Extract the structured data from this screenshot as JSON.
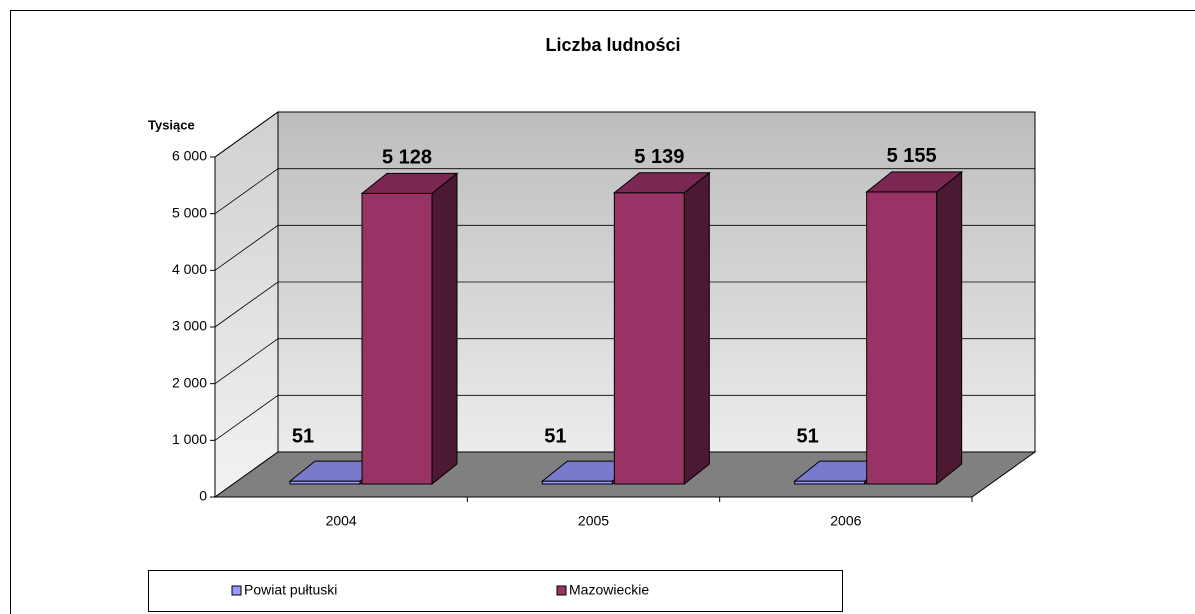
{
  "chart_data": {
    "type": "bar3d",
    "title": "Liczba ludności",
    "y_label": "Tysiące",
    "categories": [
      "2004",
      "2005",
      "2006"
    ],
    "series": [
      {
        "name": "Powiat pułtuski",
        "color": "#9999ff",
        "values": [
          51,
          51,
          51
        ],
        "value_labels": [
          "51",
          "51",
          "51"
        ]
      },
      {
        "name": "Mazowieckie",
        "color": "#993366",
        "values": [
          5128,
          5139,
          5155
        ],
        "value_labels": [
          "5 128",
          "5 139",
          "5 155"
        ]
      }
    ],
    "ylim": [
      0,
      6000
    ],
    "yticks": [
      0,
      {
        "value": 1000,
        "label": "1 000"
      },
      {
        "value": 2000,
        "label": "2 000"
      },
      {
        "value": 3000,
        "label": "3 000"
      },
      {
        "value": 4000,
        "label": "4 000"
      },
      {
        "value": 5000,
        "label": "5 000"
      },
      {
        "value": 6000,
        "label": "6 000"
      }
    ],
    "grid": true,
    "legend": "bottom"
  }
}
